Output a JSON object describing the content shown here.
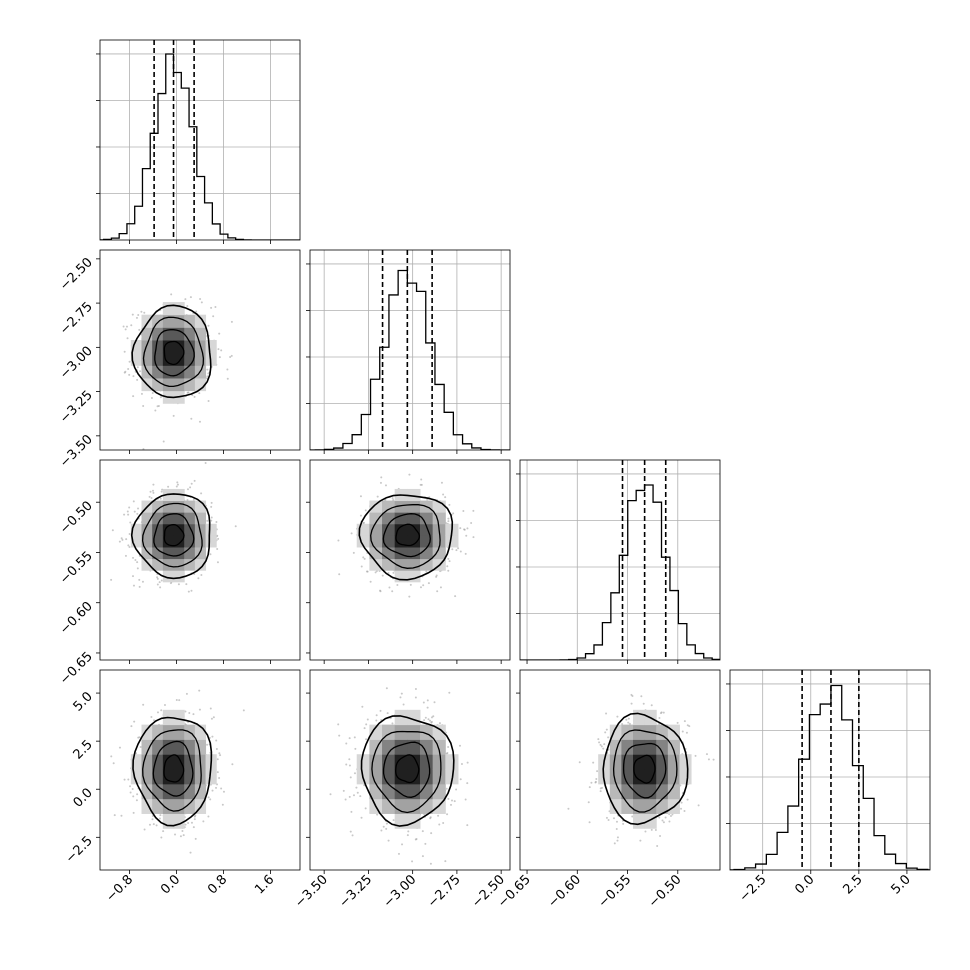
{
  "chart_data": {
    "type": "corner",
    "parameters": [
      {
        "range": [
          -1.3,
          2.1
        ],
        "ticks": [
          -0.8,
          0.0,
          0.8,
          1.6
        ],
        "tick_labels": [
          "−0.8",
          "0.0",
          "0.8",
          "1.6"
        ],
        "mean": -0.05,
        "sd": 0.33,
        "quantiles": [
          -0.38,
          -0.05,
          0.3
        ]
      },
      {
        "range": [
          -3.58,
          -2.45
        ],
        "ticks": [
          -3.5,
          -3.25,
          -3.0,
          -2.75,
          -2.5
        ],
        "tick_labels": [
          "−3.50",
          "−3.25",
          "−3.00",
          "−2.75",
          "−2.50"
        ],
        "mean": -3.03,
        "sd": 0.13,
        "quantiles": [
          -3.17,
          -3.03,
          -2.89
        ]
      },
      {
        "range": [
          -0.657,
          -0.458
        ],
        "ticks": [
          -0.65,
          -0.6,
          -0.55,
          -0.5
        ],
        "tick_labels": [
          "−0.65",
          "−0.60",
          "−0.55",
          "−0.50"
        ],
        "mean": -0.533,
        "sd": 0.021,
        "quantiles": [
          -0.555,
          -0.533,
          -0.512
        ]
      },
      {
        "range": [
          -4.2,
          6.2
        ],
        "ticks": [
          -2.5,
          0.0,
          2.5,
          5.0
        ],
        "tick_labels": [
          "−2.5",
          "0.0",
          "2.5",
          "5.0"
        ],
        "mean": 1.05,
        "sd": 1.4,
        "quantiles": [
          -0.45,
          1.05,
          2.5
        ]
      }
    ],
    "histogram_bins": 20,
    "contour_sigmas": [
      0.5,
      1.0,
      1.5,
      2.0
    ],
    "quantile_style": "dashed",
    "grid": true
  }
}
